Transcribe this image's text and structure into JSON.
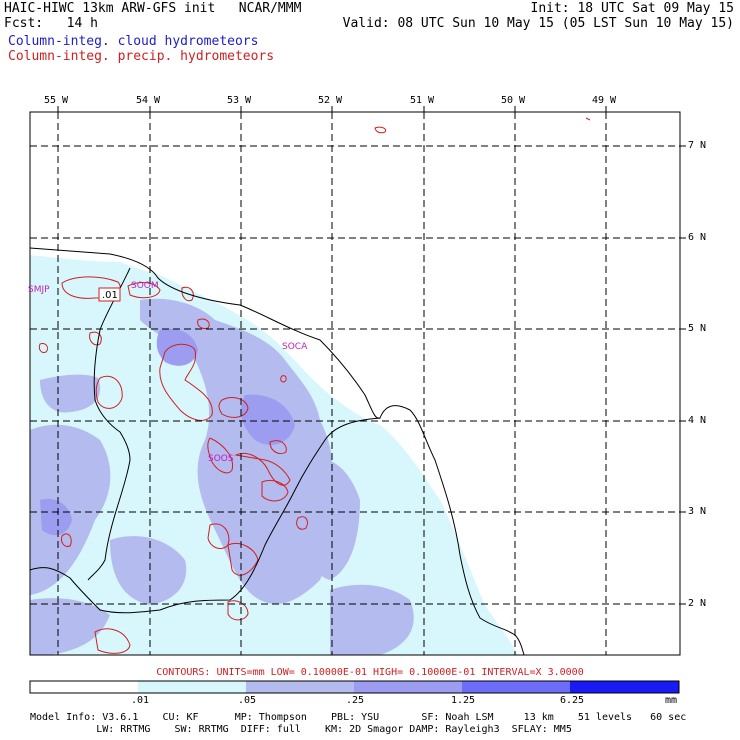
{
  "header": {
    "left1": "HAIC-HIWC 13km ARW-GFS init   NCAR/MMM",
    "left2": "Fcst:   14 h",
    "left3": "Column-integ. cloud hydrometeors",
    "left4": "Column-integ. precip. hydrometeors",
    "right1": "Init: 18 UTC Sat 09 May 15",
    "right2": "Valid: 08 UTC Sun 10 May 15 (05 LST Sun 10 May 15)",
    "cloud_color": "#2020c8",
    "precip_color": "#d02020"
  },
  "map": {
    "lon_labels": [
      "55 W",
      "54 W",
      "53 W",
      "52 W",
      "51 W",
      "50 W",
      "49 W"
    ],
    "lat_labels": [
      "7 N",
      "6 N",
      "5 N",
      "4 N",
      "3 N",
      "2 N"
    ],
    "stations": [
      "SMJP",
      "SOOM",
      "SOCA",
      "SOOS"
    ],
    "contour_label": ".01"
  },
  "footer": {
    "contours": "CONTOURS:  UNITS=mm  LOW= 0.10000E-01  HIGH= 0.10000E-01  INTERVAL=X  3.0000",
    "colorbar_labels": [
      ".01",
      ".05",
      ".25",
      "1.25",
      "6.25",
      "mm"
    ],
    "colorbar_colors": [
      "#ffffff",
      "#d8f7fc",
      "#b4bbee",
      "#9c9cf0",
      "#6d6dfa",
      "#1a1af5"
    ],
    "model_line1": "Model Info: V3.6.1    CU: KF      MP: Thompson    PBL: YSU       SF: Noah LSM     13 km    51 levels   60 sec",
    "model_line2": "           LW: RRTMG    SW: RRTMG  DIFF: full    KM: 2D Smagor DAMP: Rayleigh3  SFLAY: MM5"
  }
}
